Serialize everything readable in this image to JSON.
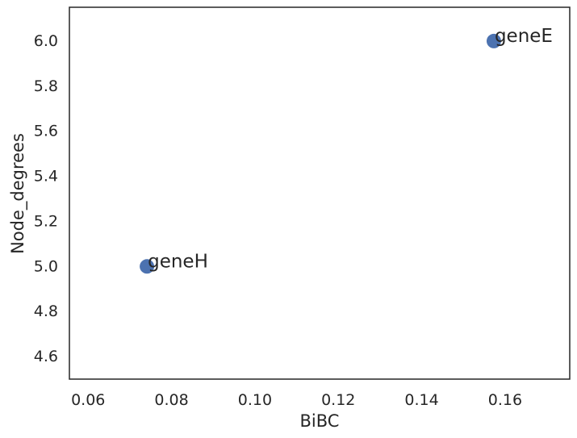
{
  "chart_data": {
    "type": "scatter",
    "title": "",
    "xlabel": "BiBC",
    "ylabel": "Node_degrees",
    "xlim": [
      0.0555,
      0.1755
    ],
    "ylim": [
      4.5,
      6.15
    ],
    "xticks": [
      0.06,
      0.08,
      0.1,
      0.12,
      0.14,
      0.16
    ],
    "xtick_labels": [
      "0.06",
      "0.08",
      "0.10",
      "0.12",
      "0.14",
      "0.16"
    ],
    "yticks": [
      4.6,
      4.8,
      5.0,
      5.2,
      5.4,
      5.6,
      5.8,
      6.0
    ],
    "ytick_labels": [
      "4.6",
      "4.8",
      "5.0",
      "5.2",
      "5.4",
      "5.6",
      "5.8",
      "6.0"
    ],
    "grid": false,
    "legend": "none",
    "marker_color": "#4c72b0",
    "points": [
      {
        "label": "geneH",
        "x": 0.0741,
        "y": 5.0
      },
      {
        "label": "geneE",
        "x": 0.1573,
        "y": 6.0
      }
    ]
  }
}
